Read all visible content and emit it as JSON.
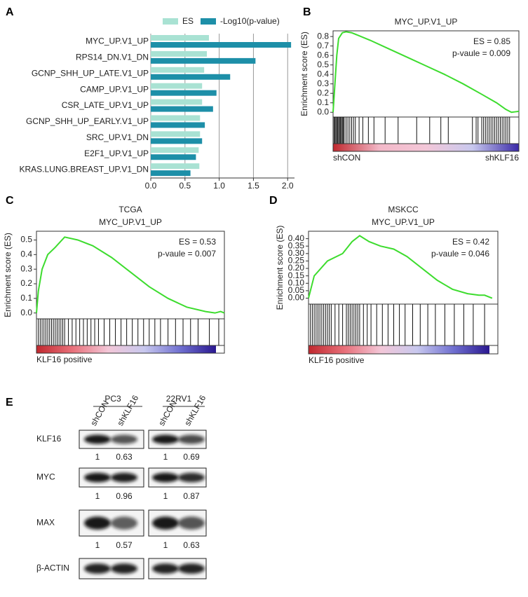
{
  "chart_data": [
    {
      "panel": "A",
      "type": "hbar",
      "categories": [
        "MYC_UP.V1_UP",
        "RPS14_DN.V1_DN",
        "GCNP_SHH_UP_LATE.V1_UP",
        "CAMP_UP.V1_UP",
        "CSR_LATE_UP.V1_UP",
        "GCNP_SHH_UP_EARLY.V1_UP",
        "SRC_UP.V1_DN",
        "E2F1_UP.V1_UP",
        "KRAS.LUNG.BREAST_UP.V1_DN"
      ],
      "series": [
        {
          "name": "ES",
          "color": "#a9e2d3",
          "values": [
            0.85,
            0.82,
            0.78,
            0.75,
            0.75,
            0.72,
            0.72,
            0.7,
            0.71
          ]
        },
        {
          "name": "-Log10(p-value)",
          "color": "#1d8fa8",
          "values": [
            2.05,
            1.53,
            1.16,
            0.96,
            0.91,
            0.79,
            0.75,
            0.66,
            0.58
          ]
        }
      ],
      "xlim": [
        0,
        2.1
      ],
      "xticks": [
        {
          "value": 0,
          "label": "0.0"
        },
        0.5,
        {
          "value": 1,
          "label": "1.0"
        },
        1.5,
        {
          "value": 2,
          "label": "2.0"
        }
      ],
      "grid": true,
      "highlight_index": 0,
      "highlight_color": "#e0383e"
    },
    {
      "panel": "B",
      "type": "gsea",
      "title": "MYC_UP.V1_UP",
      "ylabel": "Enrichment score (ES)",
      "color": "#3ddc2e",
      "x": [
        0,
        1,
        2,
        3,
        5,
        7,
        10,
        20,
        30,
        40,
        50,
        60,
        70,
        80,
        88,
        93,
        96,
        98,
        100
      ],
      "values": [
        0,
        0.3,
        0.6,
        0.78,
        0.84,
        0.85,
        0.84,
        0.76,
        0.67,
        0.58,
        0.49,
        0.4,
        0.3,
        0.19,
        0.1,
        0.03,
        0,
        0.005,
        0.01
      ],
      "xlim": [
        0,
        100
      ],
      "ylim": [
        -0.05,
        0.86
      ],
      "yticks": [
        {
          "value": 0,
          "label": "0.0"
        },
        0.1,
        0.2,
        0.3,
        0.4,
        0.5,
        0.6,
        0.7,
        0.8
      ],
      "annotations": [
        "ES = 0.85",
        "p-vaule = 0.009"
      ],
      "hits": [
        0.5,
        1,
        1.5,
        2,
        2.5,
        3,
        3.5,
        4,
        4.5,
        5,
        5.5,
        6,
        7,
        8,
        9,
        10,
        11,
        12,
        14,
        16,
        19,
        22,
        28,
        35,
        45,
        52,
        58,
        62,
        75,
        77,
        78,
        80,
        81,
        82,
        83,
        84,
        85,
        86,
        87,
        88,
        89,
        90,
        91,
        92,
        93,
        94,
        95
      ],
      "colorbar": [
        "#c0282e",
        "#f3b8c8",
        "#f3c7d8",
        "#c8c8ee",
        "#3a2aa8"
      ],
      "colorbar_labels": [
        "shCON",
        "shKLF16"
      ]
    },
    {
      "panel": "C",
      "type": "gsea",
      "subtitle": "TCGA",
      "title": "MYC_UP.V1_UP",
      "ylabel": "Enrichment score (ES)",
      "color": "#3ddc2e",
      "x": [
        0,
        1,
        3,
        6,
        10,
        15,
        22,
        30,
        40,
        50,
        60,
        70,
        80,
        90,
        95,
        98,
        100
      ],
      "values": [
        0,
        0.15,
        0.3,
        0.4,
        0.45,
        0.52,
        0.5,
        0.46,
        0.38,
        0.28,
        0.18,
        0.1,
        0.04,
        0.01,
        0,
        0.01,
        0
      ],
      "xlim": [
        0,
        100
      ],
      "ylim": [
        -0.04,
        0.56
      ],
      "yticks": [
        {
          "value": 0,
          "label": "0.0"
        },
        0.1,
        0.2,
        0.3,
        0.4,
        0.5
      ],
      "annotations": [
        "ES = 0.53",
        "p-vaule = 0.007"
      ],
      "hits": [
        1,
        2,
        3,
        4,
        5,
        6,
        7,
        8,
        9,
        10,
        11,
        12,
        13,
        14,
        15,
        17,
        19,
        21,
        23,
        25,
        27,
        29,
        31,
        33,
        36,
        39,
        42,
        45,
        48,
        51,
        54,
        57,
        60,
        63,
        66,
        70,
        74,
        78,
        82,
        86,
        92,
        97
      ],
      "colorbar": [
        "#c0282e",
        "#e8707a",
        "#f3c7d8",
        "#c8c8ee",
        "#7070d0",
        "#2a1890"
      ],
      "colorbar_labels": [
        "KLF16 positive"
      ]
    },
    {
      "panel": "D",
      "type": "gsea",
      "subtitle": "MSKCC",
      "title": "MYC_UP.V1_UP",
      "ylabel": "Enrichment score (ES)",
      "color": "#3ddc2e",
      "x": [
        0,
        3,
        10,
        18,
        23,
        27,
        32,
        38,
        45,
        52,
        60,
        68,
        76,
        84,
        90,
        93,
        97
      ],
      "values": [
        0,
        0.15,
        0.25,
        0.3,
        0.38,
        0.42,
        0.38,
        0.35,
        0.33,
        0.28,
        0.2,
        0.12,
        0.06,
        0.03,
        0.02,
        0.02,
        0
      ],
      "xlim": [
        0,
        100
      ],
      "ylim": [
        -0.04,
        0.45
      ],
      "yticks": [
        {
          "value": 0,
          "label": "0.00"
        },
        0.05,
        {
          "value": 0.1,
          "label": "0.10"
        },
        0.15,
        {
          "value": 0.2,
          "label": "0.20"
        },
        0.25,
        {
          "value": 0.3,
          "label": "0.30"
        },
        0.35,
        {
          "value": 0.4,
          "label": "0.40"
        }
      ],
      "annotations": [
        "ES = 0.42",
        "p-vaule = 0.046"
      ],
      "hits": [
        1,
        2,
        3,
        4,
        5,
        6,
        7,
        8,
        9,
        10,
        11,
        12,
        14,
        16,
        18,
        20,
        21,
        22,
        23,
        24,
        25,
        26,
        27,
        29,
        31,
        33,
        36,
        39,
        42,
        45,
        48,
        51,
        55,
        59,
        63,
        67,
        72,
        77,
        82,
        87,
        93
      ],
      "colorbar": [
        "#c0282e",
        "#e8707a",
        "#f3c7d8",
        "#c8c8ee",
        "#7070d0",
        "#2a1890"
      ],
      "colorbar_labels": [
        "KLF16 positive"
      ]
    }
  ],
  "blot": {
    "panel": "E",
    "groups": [
      {
        "name": "PC3",
        "lanes": [
          "shCON",
          "shKLF16"
        ]
      },
      {
        "name": "22RV1",
        "lanes": [
          "shCON",
          "shKLF16"
        ]
      }
    ],
    "rows": [
      {
        "name": "KLF16",
        "values": [
          1,
          0.63,
          1,
          0.69
        ]
      },
      {
        "name": "MYC",
        "values": [
          1,
          0.96,
          1,
          0.87
        ]
      },
      {
        "name": "MAX",
        "values": [
          1,
          0.57,
          1,
          0.63
        ]
      },
      {
        "name": "β-ACTIN"
      }
    ]
  }
}
